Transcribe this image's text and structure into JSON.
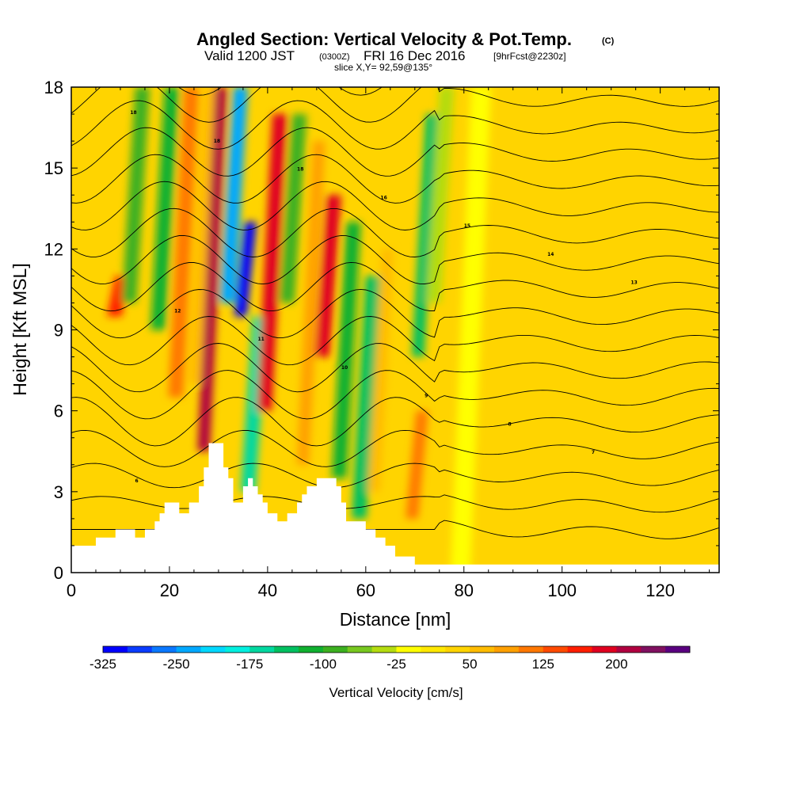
{
  "header": {
    "title": "Angled Section: Vertical Velocity & Pot.Temp.",
    "title_suffix": "(C)",
    "valid_prefix": "Valid 1200 JST",
    "valid_utc": "(0300Z)",
    "valid_date": "FRI 16 Dec 2016",
    "forecast": "[9hrFcst@2230z]",
    "slice": "slice X,Y= 92,59@135°"
  },
  "chart_data": {
    "type": "heatmap",
    "xlabel": "Distance [nm]",
    "ylabel": "Height [Kft MSL]",
    "xlim": [
      0,
      132
    ],
    "ylim": [
      0,
      18
    ],
    "x_ticks": [
      0,
      20,
      40,
      60,
      80,
      100,
      120
    ],
    "y_ticks": [
      0,
      3,
      6,
      9,
      12,
      15,
      18
    ],
    "colorbar": {
      "title": "Vertical Velocity [cm/s]",
      "tick_labels": [
        "-325",
        "-250",
        "-175",
        "-100",
        "-25",
        "50",
        "125",
        "200"
      ],
      "levels": [
        -325,
        -300,
        -275,
        -250,
        -225,
        -200,
        -175,
        -150,
        -125,
        -100,
        -75,
        -50,
        -25,
        0,
        25,
        50,
        75,
        100,
        125,
        150,
        175,
        200,
        225,
        250
      ],
      "colors": [
        "#0000ff",
        "#0a3cff",
        "#0a78ff",
        "#00a8ff",
        "#00d8ff",
        "#00f0e0",
        "#00d8a0",
        "#00c060",
        "#10b030",
        "#3cb020",
        "#78c820",
        "#b4dc10",
        "#ffff00",
        "#ffe800",
        "#ffd400",
        "#ffbc00",
        "#ffa000",
        "#ff7800",
        "#ff4a00",
        "#ff1e00",
        "#e00020",
        "#b00040",
        "#801060",
        "#5a0080"
      ]
    },
    "bands": [
      {
        "x": 9,
        "top": 11,
        "bottom": 9.5,
        "w": 3,
        "v": 150
      },
      {
        "x": 13,
        "top": 18,
        "bottom": 10,
        "w": 3,
        "v": -100
      },
      {
        "x": 19,
        "top": 18,
        "bottom": 9,
        "w": 3,
        "v": -125
      },
      {
        "x": 23,
        "top": 18,
        "bottom": 6.5,
        "w": 3,
        "v": 100
      },
      {
        "x": 27,
        "top": 18,
        "bottom": 7,
        "w": 3,
        "v": 60
      },
      {
        "x": 29,
        "top": 18,
        "bottom": 4.5,
        "w": 2.5,
        "v": 200
      },
      {
        "x": 33,
        "top": 18,
        "bottom": 10,
        "w": 3,
        "v": -250
      },
      {
        "x": 35,
        "top": 13,
        "bottom": 9.5,
        "w": 2.5,
        "v": -325
      },
      {
        "x": 37,
        "top": 9.5,
        "bottom": 3,
        "w": 3,
        "v": -175
      },
      {
        "x": 41,
        "top": 17,
        "bottom": 6,
        "w": 3,
        "v": 175
      },
      {
        "x": 45,
        "top": 17,
        "bottom": 10,
        "w": 3,
        "v": -100
      },
      {
        "x": 49,
        "top": 16,
        "bottom": 4,
        "w": 2.5,
        "v": 90
      },
      {
        "x": 52,
        "top": 14,
        "bottom": 8,
        "w": 3,
        "v": 175
      },
      {
        "x": 56,
        "top": 13,
        "bottom": 3.5,
        "w": 3,
        "v": -125
      },
      {
        "x": 60,
        "top": 11,
        "bottom": 2,
        "w": 3,
        "v": -150
      },
      {
        "x": 63,
        "top": 12,
        "bottom": 3,
        "w": 2.5,
        "v": 60
      },
      {
        "x": 70,
        "top": 6,
        "bottom": 2,
        "w": 2.5,
        "v": 100
      },
      {
        "x": 72,
        "top": 17,
        "bottom": 8,
        "w": 2.5,
        "v": -150
      },
      {
        "x": 75,
        "top": 18,
        "bottom": 10,
        "w": 3,
        "v": -50
      },
      {
        "x": 82,
        "top": 18,
        "bottom": 0,
        "w": 4,
        "v": -10
      },
      {
        "x": 96,
        "top": 18,
        "bottom": 0,
        "w": 4,
        "v": 30
      },
      {
        "x": 112,
        "top": 18,
        "bottom": 0,
        "w": 5,
        "v": 35
      },
      {
        "x": 127,
        "top": 18,
        "bottom": 0,
        "w": 4,
        "v": 40
      }
    ],
    "terrain": [
      [
        0,
        1
      ],
      [
        5,
        1
      ],
      [
        5,
        1.3
      ],
      [
        9,
        1.3
      ],
      [
        9,
        1.6
      ],
      [
        13,
        1.6
      ],
      [
        13,
        1.3
      ],
      [
        15,
        1.3
      ],
      [
        15,
        1.6
      ],
      [
        17,
        1.6
      ],
      [
        17,
        1.9
      ],
      [
        18,
        1.9
      ],
      [
        18,
        2.2
      ],
      [
        19,
        2.2
      ],
      [
        19,
        2.6
      ],
      [
        22,
        2.6
      ],
      [
        22,
        2.2
      ],
      [
        24,
        2.2
      ],
      [
        24,
        2.6
      ],
      [
        26,
        2.6
      ],
      [
        26,
        3.2
      ],
      [
        27,
        3.2
      ],
      [
        27,
        3.9
      ],
      [
        28,
        3.9
      ],
      [
        28,
        4.8
      ],
      [
        31,
        4.8
      ],
      [
        31,
        3.9
      ],
      [
        32,
        3.9
      ],
      [
        32,
        3.5
      ],
      [
        33,
        3.5
      ],
      [
        33,
        2.6
      ],
      [
        35,
        2.6
      ],
      [
        35,
        3.2
      ],
      [
        36,
        3.2
      ],
      [
        36,
        3.5
      ],
      [
        37,
        3.5
      ],
      [
        37,
        3.2
      ],
      [
        38,
        3.2
      ],
      [
        38,
        2.9
      ],
      [
        39,
        2.9
      ],
      [
        39,
        2.6
      ],
      [
        40,
        2.6
      ],
      [
        40,
        2.2
      ],
      [
        42,
        2.2
      ],
      [
        42,
        1.9
      ],
      [
        44,
        1.9
      ],
      [
        44,
        2.2
      ],
      [
        46,
        2.2
      ],
      [
        46,
        2.6
      ],
      [
        47,
        2.6
      ],
      [
        47,
        2.9
      ],
      [
        48,
        2.9
      ],
      [
        48,
        3.2
      ],
      [
        50,
        3.2
      ],
      [
        50,
        3.5
      ],
      [
        54,
        3.5
      ],
      [
        54,
        3.2
      ],
      [
        55,
        3.2
      ],
      [
        55,
        2.6
      ],
      [
        56,
        2.6
      ],
      [
        56,
        1.9
      ],
      [
        60,
        1.9
      ],
      [
        60,
        1.6
      ],
      [
        62,
        1.6
      ],
      [
        62,
        1.3
      ],
      [
        64,
        1.3
      ],
      [
        64,
        1
      ],
      [
        66,
        1
      ],
      [
        66,
        0.6
      ],
      [
        70,
        0.6
      ],
      [
        70,
        0.3
      ],
      [
        132,
        0.3
      ]
    ],
    "theta_contours": {
      "count": 18,
      "spacing_kft": 1.0,
      "base_kft": 1.6,
      "labels": [
        "18",
        "18",
        "18",
        "16",
        "15",
        "14",
        "13",
        "12",
        "11",
        "10",
        "9",
        "8",
        "7",
        "6"
      ]
    }
  }
}
